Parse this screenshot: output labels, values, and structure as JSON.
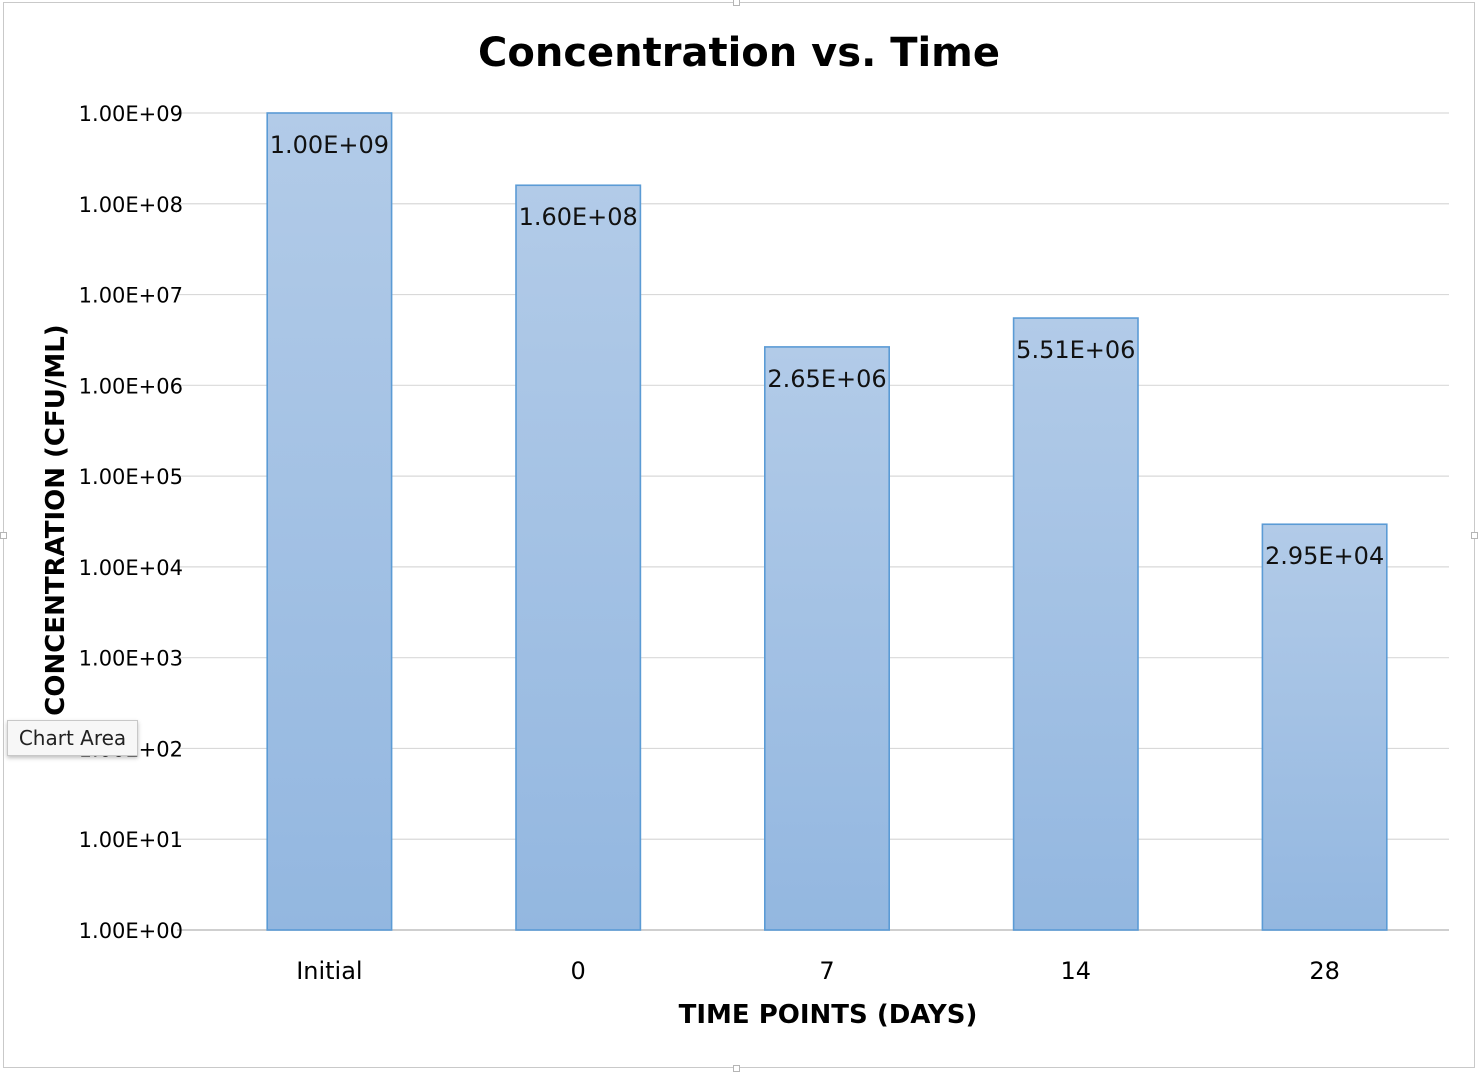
{
  "chart_data": {
    "type": "bar",
    "title": "Concentration vs. Time",
    "xlabel": "TIME POINTS (DAYS)",
    "ylabel": "CONCENTRATION (CFU/ML)",
    "categories": [
      "Initial",
      "0",
      "7",
      "14",
      "28"
    ],
    "values": [
      1000000000,
      160000000,
      2650000,
      5510000,
      29500
    ],
    "data_labels": [
      "1.00E+09",
      "1.60E+08",
      "2.65E+06",
      "5.51E+06",
      "2.95E+04"
    ],
    "y_scale": "log",
    "ylim": [
      1,
      1000000000
    ],
    "y_ticks": [
      "1.00E+00",
      "1.00E+01",
      "1.00E+02",
      "1.00E+03",
      "1.00E+04",
      "1.00E+05",
      "1.00E+06",
      "1.00E+07",
      "1.00E+08",
      "1.00E+09"
    ],
    "grid": true,
    "legend": "none",
    "bar_color": "#9dbde3",
    "bar_border_color": "#5b9bd5"
  },
  "tooltip": {
    "text": "Chart Area"
  }
}
